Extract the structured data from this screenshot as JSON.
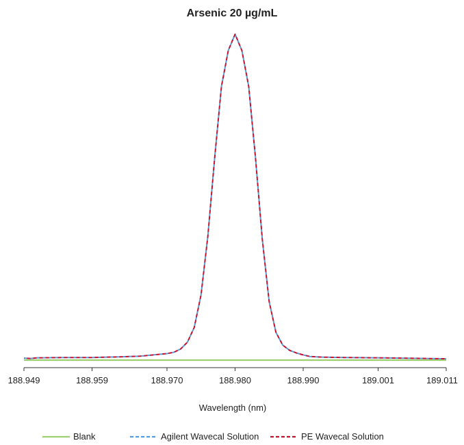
{
  "chart_data": {
    "type": "line",
    "title": "Arsenic 20 µg/mL",
    "xlabel": "Wavelength (nm)",
    "ylabel": "",
    "xlim": [
      188.949,
      189.011
    ],
    "ylim": [
      0,
      100
    ],
    "x_ticks": [
      {
        "value": 188.949,
        "label": "188.949"
      },
      {
        "value": 188.959,
        "label": "188.959"
      },
      {
        "value": 188.97,
        "label": "188.970"
      },
      {
        "value": 188.98,
        "label": "188.980"
      },
      {
        "value": 188.99,
        "label": "188.990"
      },
      {
        "value": 189.001,
        "label": "189.001"
      },
      {
        "value": 189.011,
        "label": "189.011"
      }
    ],
    "grid": false,
    "legend_position": "bottom",
    "series": [
      {
        "name": "Blank",
        "color": "#9ccf6e",
        "style": "solid",
        "points": [
          [
            188.949,
            0.0
          ],
          [
            189.011,
            0.0
          ]
        ]
      },
      {
        "name": "Agilent Wavecal Solution",
        "color": "#5b9bd5",
        "style": "dashed",
        "points": [
          [
            188.949,
            0.6
          ],
          [
            188.95,
            0.5
          ],
          [
            188.951,
            0.7
          ],
          [
            188.955,
            0.8
          ],
          [
            188.959,
            0.8
          ],
          [
            188.963,
            1.0
          ],
          [
            188.966,
            1.2
          ],
          [
            188.968,
            1.6
          ],
          [
            188.97,
            2.0
          ],
          [
            188.971,
            2.4
          ],
          [
            188.972,
            3.4
          ],
          [
            188.973,
            5.5
          ],
          [
            188.974,
            10.0
          ],
          [
            188.975,
            20.0
          ],
          [
            188.976,
            38.0
          ],
          [
            188.977,
            62.0
          ],
          [
            188.978,
            84.0
          ],
          [
            188.979,
            95.0
          ],
          [
            188.98,
            100.0
          ],
          [
            188.981,
            95.0
          ],
          [
            188.982,
            84.0
          ],
          [
            188.983,
            62.0
          ],
          [
            188.984,
            37.0
          ],
          [
            188.985,
            18.0
          ],
          [
            188.986,
            8.5
          ],
          [
            188.987,
            4.6
          ],
          [
            188.988,
            3.0
          ],
          [
            188.989,
            2.2
          ],
          [
            188.99,
            1.6
          ],
          [
            188.991,
            1.1
          ],
          [
            188.993,
            0.9
          ],
          [
            188.996,
            0.8
          ],
          [
            189.001,
            0.7
          ],
          [
            189.005,
            0.6
          ],
          [
            189.011,
            0.4
          ]
        ]
      },
      {
        "name": "PE Wavecal Solution",
        "color": "#c8102e",
        "style": "dashed",
        "points": [
          [
            188.949,
            0.6
          ],
          [
            188.95,
            0.5
          ],
          [
            188.951,
            0.7
          ],
          [
            188.955,
            0.8
          ],
          [
            188.959,
            0.8
          ],
          [
            188.963,
            1.0
          ],
          [
            188.966,
            1.2
          ],
          [
            188.968,
            1.6
          ],
          [
            188.97,
            2.0
          ],
          [
            188.971,
            2.4
          ],
          [
            188.972,
            3.4
          ],
          [
            188.973,
            5.5
          ],
          [
            188.974,
            10.0
          ],
          [
            188.975,
            20.0
          ],
          [
            188.976,
            38.0
          ],
          [
            188.977,
            62.0
          ],
          [
            188.978,
            84.0
          ],
          [
            188.979,
            95.0
          ],
          [
            188.98,
            100.0
          ],
          [
            188.981,
            95.0
          ],
          [
            188.982,
            84.0
          ],
          [
            188.983,
            62.0
          ],
          [
            188.984,
            37.0
          ],
          [
            188.985,
            18.0
          ],
          [
            188.986,
            8.5
          ],
          [
            188.987,
            4.6
          ],
          [
            188.988,
            3.0
          ],
          [
            188.989,
            2.2
          ],
          [
            188.99,
            1.6
          ],
          [
            188.991,
            1.1
          ],
          [
            188.993,
            0.9
          ],
          [
            188.996,
            0.8
          ],
          [
            189.001,
            0.7
          ],
          [
            189.005,
            0.6
          ],
          [
            189.011,
            0.4
          ]
        ]
      }
    ]
  }
}
